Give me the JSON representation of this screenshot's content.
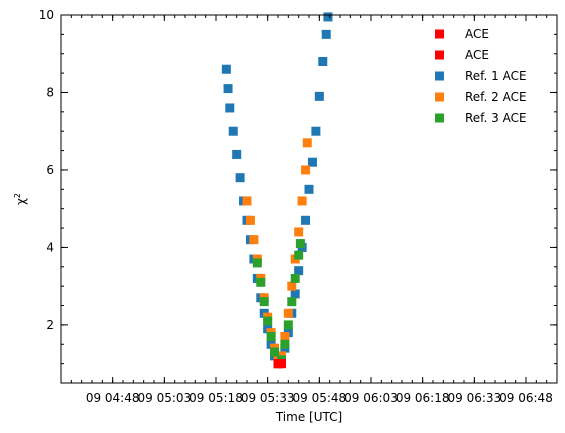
{
  "chart_data": {
    "type": "scatter",
    "xlabel": "Time [UTC]",
    "ylabel": "χ²",
    "ylabel_base": "χ",
    "ylabel_sup": "2",
    "xlim": [
      "04:33",
      "06:57"
    ],
    "ylim": [
      0.5,
      10
    ],
    "x_ticks": [
      "04:48",
      "05:03",
      "05:18",
      "05:33",
      "05:48",
      "06:03",
      "06:18",
      "06:33",
      "06:48"
    ],
    "x_tick_labels": [
      "09 04:48",
      "09 05:03",
      "09 05:18",
      "09 05:33",
      "09 05:48",
      "09 06:03",
      "09 06:18",
      "09 06:33",
      "09 06:48"
    ],
    "y_ticks": [
      2,
      4,
      6,
      8,
      10
    ],
    "y_tick_labels": [
      "2",
      "4",
      "6",
      "8",
      "10"
    ],
    "legend_position": "upper right",
    "series": [
      {
        "name": "ACE",
        "color": "#ff0000",
        "points": [
          [
            "05:36",
            1.0
          ],
          [
            "05:37",
            1.0
          ]
        ]
      },
      {
        "name": "ACE",
        "color": "#ff0000",
        "points": [
          [
            "05:36",
            1.0
          ],
          [
            "05:37",
            1.0
          ]
        ]
      },
      {
        "name": "Ref. 1 ACE",
        "color": "#1f77b4",
        "points": [
          [
            "05:21",
            8.6
          ],
          [
            "05:21.5",
            8.1
          ],
          [
            "05:22",
            7.6
          ],
          [
            "05:23",
            7.0
          ],
          [
            "05:24",
            6.4
          ],
          [
            "05:25",
            5.8
          ],
          [
            "05:26",
            5.2
          ],
          [
            "05:27",
            4.7
          ],
          [
            "05:28",
            4.2
          ],
          [
            "05:29",
            3.7
          ],
          [
            "05:30",
            3.2
          ],
          [
            "05:31",
            2.7
          ],
          [
            "05:32",
            2.3
          ],
          [
            "05:33",
            1.9
          ],
          [
            "05:34",
            1.5
          ],
          [
            "05:35",
            1.2
          ],
          [
            "05:36",
            1.0
          ],
          [
            "05:37",
            1.1
          ],
          [
            "05:38",
            1.4
          ],
          [
            "05:39",
            1.8
          ],
          [
            "05:40",
            2.3
          ],
          [
            "05:41",
            2.8
          ],
          [
            "05:42",
            3.4
          ],
          [
            "05:43",
            4.0
          ],
          [
            "05:44",
            4.7
          ],
          [
            "05:45",
            5.5
          ],
          [
            "05:46",
            6.2
          ],
          [
            "05:47",
            7.0
          ],
          [
            "05:48",
            7.9
          ],
          [
            "05:49",
            8.8
          ],
          [
            "05:50",
            9.5
          ],
          [
            "05:50.5",
            9.95
          ]
        ]
      },
      {
        "name": "Ref. 2 ACE",
        "color": "#ff7f0e",
        "points": [
          [
            "05:27",
            5.2
          ],
          [
            "05:28",
            4.7
          ],
          [
            "05:29",
            4.2
          ],
          [
            "05:30",
            3.7
          ],
          [
            "05:31",
            3.2
          ],
          [
            "05:32",
            2.7
          ],
          [
            "05:33",
            2.2
          ],
          [
            "05:34",
            1.8
          ],
          [
            "05:35",
            1.4
          ],
          [
            "05:36",
            1.1
          ],
          [
            "05:37",
            1.2
          ],
          [
            "05:38",
            1.7
          ],
          [
            "05:39",
            2.3
          ],
          [
            "05:40",
            3.0
          ],
          [
            "05:41",
            3.7
          ],
          [
            "05:42",
            4.4
          ],
          [
            "05:43",
            5.2
          ],
          [
            "05:44",
            6.0
          ],
          [
            "05:44.5",
            6.7
          ]
        ]
      },
      {
        "name": "Ref. 3 ACE",
        "color": "#2ca02c",
        "points": [
          [
            "05:30",
            3.6
          ],
          [
            "05:31",
            3.1
          ],
          [
            "05:32",
            2.6
          ],
          [
            "05:33",
            2.1
          ],
          [
            "05:34",
            1.7
          ],
          [
            "05:35",
            1.3
          ],
          [
            "05:36",
            1.0
          ],
          [
            "05:37",
            1.1
          ],
          [
            "05:38",
            1.5
          ],
          [
            "05:39",
            2.0
          ],
          [
            "05:40",
            2.6
          ],
          [
            "05:41",
            3.2
          ],
          [
            "05:42",
            3.8
          ],
          [
            "05:42.5",
            4.1
          ]
        ]
      }
    ]
  }
}
